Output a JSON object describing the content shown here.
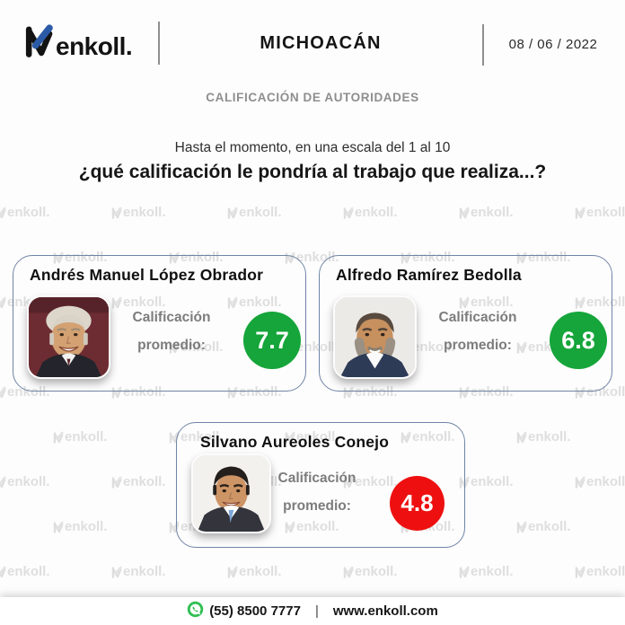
{
  "brand": {
    "logo_text": "enkoll.",
    "watermark_text": "enkoll."
  },
  "header": {
    "title": "MICHOACÁN",
    "date": "08 / 06 / 2022"
  },
  "subtitle": "CALIFICACIÓN DE AUTORIDADES",
  "question": {
    "line1": "Hasta el momento, en una escala del 1 al 10",
    "line2": "¿qué calificación le pondría al trabajo que realiza...?"
  },
  "score_label": {
    "line1": "Calificación",
    "line2": "promedio:"
  },
  "cards": [
    {
      "name": "Andrés Manuel López Obrador",
      "score": "7.7",
      "score_color": "#15a53a"
    },
    {
      "name": "Alfredo Ramírez Bedolla",
      "score": "6.8",
      "score_color": "#15a53a"
    },
    {
      "name": "Silvano Aureoles Conejo",
      "score": "4.8",
      "score_color": "#ee1010"
    }
  ],
  "footer": {
    "phone": "(55) 8500 7777",
    "separator": "|",
    "website": "www.enkoll.com"
  },
  "colors": {
    "score_green": "#15a53a",
    "score_red": "#ee1010",
    "card_border": "#7184a6",
    "logo_blue": "#2b5aa6",
    "whatsapp_green": "#2fbf52",
    "subtitle_gray": "#8e8e8e"
  },
  "chart_data": {
    "type": "table",
    "title": "CALIFICACIÓN DE AUTORIDADES",
    "question": "Hasta el momento, en una escala del 1 al 10 ¿qué calificación le pondría al trabajo que realiza...?",
    "region": "MICHOACÁN",
    "date": "08 / 06 / 2022",
    "scale_min": 1,
    "scale_max": 10,
    "categories": [
      "Andrés Manuel López Obrador",
      "Alfredo Ramírez Bedolla",
      "Silvano Aureoles Conejo"
    ],
    "values": [
      7.7,
      6.8,
      4.8
    ]
  }
}
